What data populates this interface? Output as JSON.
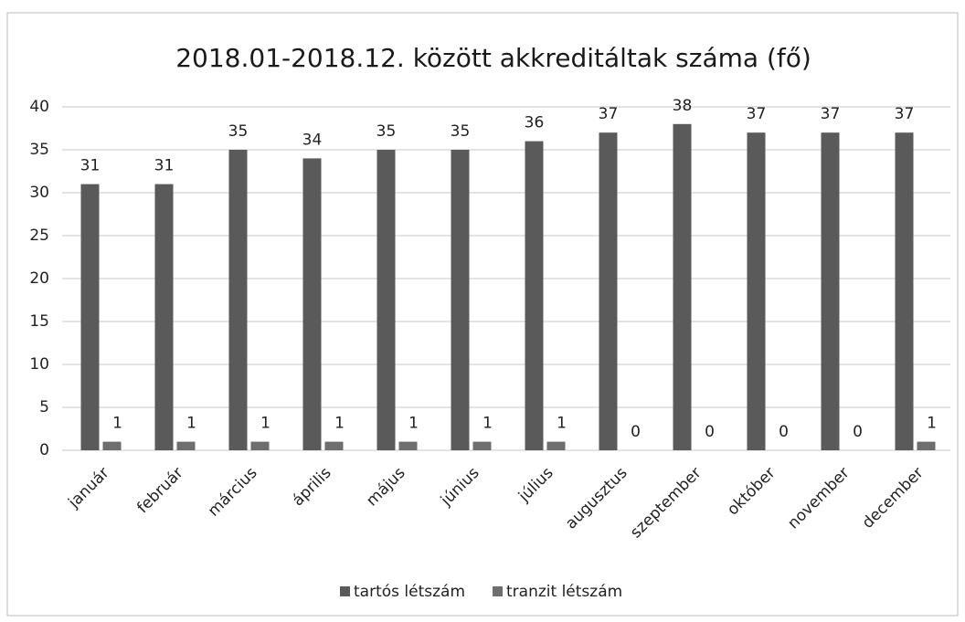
{
  "chart_data": {
    "type": "bar",
    "title": "2018.01-2018.12. között akkreditáltak száma (fő)",
    "categories": [
      "január",
      "február",
      "március",
      "április",
      "május",
      "június",
      "július",
      "augusztus",
      "szeptember",
      "október",
      "november",
      "december"
    ],
    "series": [
      {
        "name": "tartós létszám",
        "color": "#5a5a5a",
        "values": [
          31,
          31,
          35,
          34,
          35,
          35,
          36,
          37,
          38,
          37,
          37,
          37
        ]
      },
      {
        "name": "tranzit létszám",
        "color": "#6e6e6e",
        "values": [
          1,
          1,
          1,
          1,
          1,
          1,
          1,
          0,
          0,
          0,
          0,
          1
        ]
      }
    ],
    "ylim": [
      0,
      40
    ],
    "yticks": [
      0,
      5,
      10,
      15,
      20,
      25,
      30,
      35,
      40
    ],
    "grid": true,
    "legend": "bottom"
  }
}
